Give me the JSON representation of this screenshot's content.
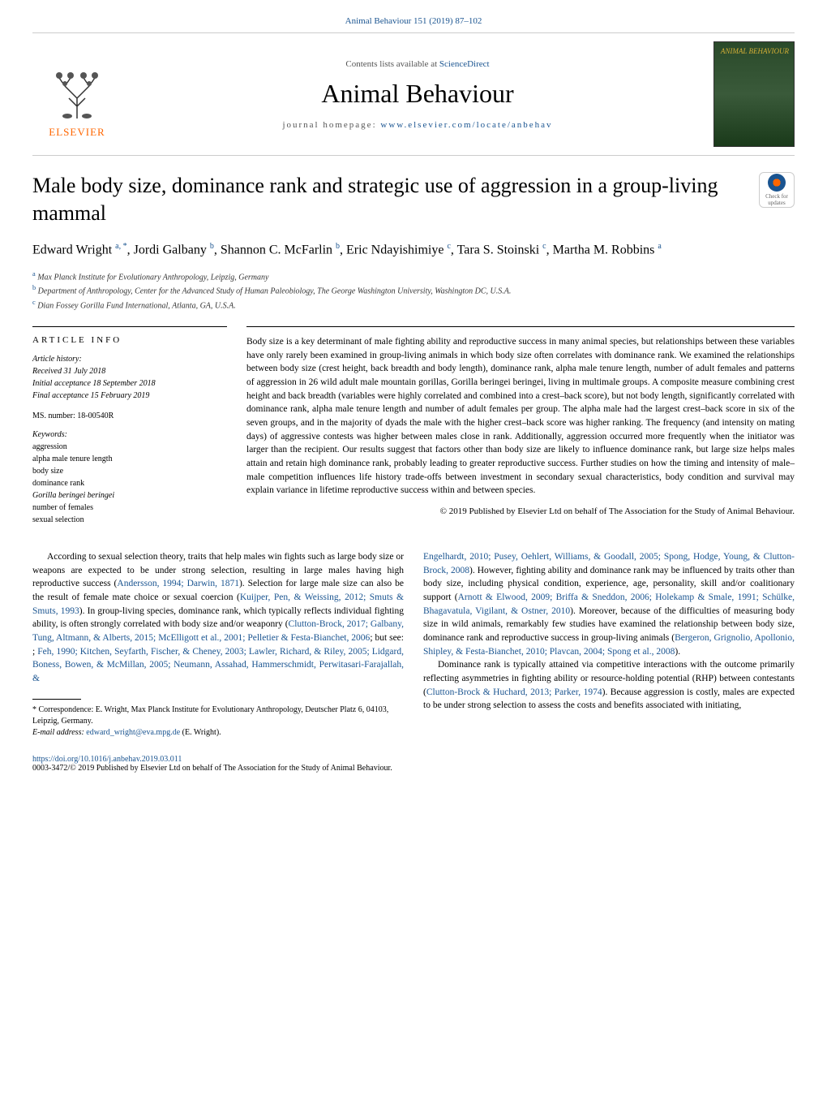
{
  "header": {
    "journal_ref": "Animal Behaviour 151 (2019) 87–102",
    "contents_prefix": "Contents lists available at ",
    "contents_link": "ScienceDirect",
    "journal_title": "Animal Behaviour",
    "homepage_prefix": "journal homepage: ",
    "homepage_url": "www.elsevier.com/locate/anbehav",
    "publisher_logo_text": "ELSEVIER",
    "cover_title": "ANIMAL BEHAVIOUR"
  },
  "check_badge": {
    "line1": "Check for",
    "line2": "updates"
  },
  "article": {
    "title": "Male body size, dominance rank and strategic use of aggression in a group-living mammal",
    "authors_html": "Edward Wright <sup>a, *</sup>, Jordi Galbany <sup>b</sup>, Shannon C. McFarlin <sup>b</sup>, Eric Ndayishimiye <sup>c</sup>, Tara S. Stoinski <sup>c</sup>, Martha M. Robbins <sup>a</sup>",
    "affiliations": {
      "a": "Max Planck Institute for Evolutionary Anthropology, Leipzig, Germany",
      "b": "Department of Anthropology, Center for the Advanced Study of Human Paleobiology, The George Washington University, Washington DC, U.S.A.",
      "c": "Dian Fossey Gorilla Fund International, Atlanta, GA, U.S.A."
    }
  },
  "info": {
    "heading": "ARTICLE INFO",
    "history_label": "Article history:",
    "received": "Received 31 July 2018",
    "initial_acceptance": "Initial acceptance 18 September 2018",
    "final_acceptance": "Final acceptance 15 February 2019",
    "ms_number": "MS. number: 18-00540R",
    "keywords_label": "Keywords:",
    "keywords": [
      "aggression",
      "alpha male tenure length",
      "body size",
      "dominance rank",
      "Gorilla beringei beringei",
      "number of females",
      "sexual selection"
    ]
  },
  "abstract": {
    "text": "Body size is a key determinant of male fighting ability and reproductive success in many animal species, but relationships between these variables have only rarely been examined in group-living animals in which body size often correlates with dominance rank. We examined the relationships between body size (crest height, back breadth and body length), dominance rank, alpha male tenure length, number of adult females and patterns of aggression in 26 wild adult male mountain gorillas, Gorilla beringei beringei, living in multimale groups. A composite measure combining crest height and back breadth (variables were highly correlated and combined into a crest–back score), but not body length, significantly correlated with dominance rank, alpha male tenure length and number of adult females per group. The alpha male had the largest crest–back score in six of the seven groups, and in the majority of dyads the male with the higher crest–back score was higher ranking. The frequency (and intensity on mating days) of aggressive contests was higher between males close in rank. Additionally, aggression occurred more frequently when the initiator was larger than the recipient. Our results suggest that factors other than body size are likely to influence dominance rank, but large size helps males attain and retain high dominance rank, probably leading to greater reproductive success. Further studies on how the timing and intensity of male–male competition influences life history trade-offs between investment in secondary sexual characteristics, body condition and survival may explain variance in lifetime reproductive success within and between species.",
    "copyright": "© 2019 Published by Elsevier Ltd on behalf of The Association for the Study of Animal Behaviour."
  },
  "body": {
    "col1_p1_pre": "According to sexual selection theory, traits that help males win fights such as large body size or weapons are expected to be under strong selection, resulting in large males having high reproductive success (",
    "col1_ref1": "Andersson, 1994; Darwin, 1871",
    "col1_p1_mid1": "). Selection for large male size can also be the result of female mate choice or sexual coercion (",
    "col1_ref2": "Kuijper, Pen, & Weissing, 2012; Smuts & Smuts, 1993",
    "col1_p1_mid2": "). In group-living species, dominance rank, which typically reflects individual fighting ability, is often strongly correlated with body size and/or weaponry (",
    "col1_ref3": "Clutton-Brock, 2017; Galbany, Tung, Altmann, & Alberts, 2015; McElligott et al., 2001; Pelletier & Festa-Bianchet, 2006",
    "col1_p1_mid3": "; but see: ; ",
    "col1_ref4": "Feh, 1990; Kitchen, Seyfarth, Fischer, & Cheney, 2003; Lawler, Richard, & Riley, 2005; Lidgard, Boness, Bowen, & McMillan, 2005; Neumann, Assahad, Hammerschmidt, Perwitasari-Farajallah, &",
    "col2_ref5": "Engelhardt, 2010; Pusey, Oehlert, Williams, & Goodall, 2005; Spong, Hodge, Young, & Clutton-Brock, 2008",
    "col2_p1_mid1": "). However, fighting ability and dominance rank may be influenced by traits other than body size, including physical condition, experience, age, personality, skill and/or coalitionary support (",
    "col2_ref6": "Arnott & Elwood, 2009; Briffa & Sneddon, 2006; Holekamp & Smale, 1991; Schülke, Bhagavatula, Vigilant, & Ostner, 2010",
    "col2_p1_mid2": "). Moreover, because of the difficulties of measuring body size in wild animals, remarkably few studies have examined the relationship between body size, dominance rank and reproductive success in group-living animals (",
    "col2_ref7": "Bergeron, Grignolio, Apollonio, Shipley, & Festa-Bianchet, 2010; Plavcan, 2004; Spong et al., 2008",
    "col2_p1_end": ").",
    "col2_p2_pre": "Dominance rank is typically attained via competitive interactions with the outcome primarily reflecting asymmetries in fighting ability or resource-holding potential (RHP) between contestants (",
    "col2_ref8": "Clutton-Brock & Huchard, 2013; Parker, 1974",
    "col2_p2_end": "). Because aggression is costly, males are expected to be under strong selection to assess the costs and benefits associated with initiating,"
  },
  "footnote": {
    "correspondence": "* Correspondence: E. Wright, Max Planck Institute for Evolutionary Anthropology, Deutscher Platz 6, 04103, Leipzig, Germany.",
    "email_label": "E-mail address: ",
    "email": "edward_wright@eva.mpg.de",
    "email_suffix": " (E. Wright)."
  },
  "footer": {
    "doi": "https://doi.org/10.1016/j.anbehav.2019.03.011",
    "issn_copyright": "0003-3472/© 2019 Published by Elsevier Ltd on behalf of The Association for the Study of Animal Behaviour."
  },
  "colors": {
    "link": "#1a5490",
    "elsevier_orange": "#ff6600"
  }
}
